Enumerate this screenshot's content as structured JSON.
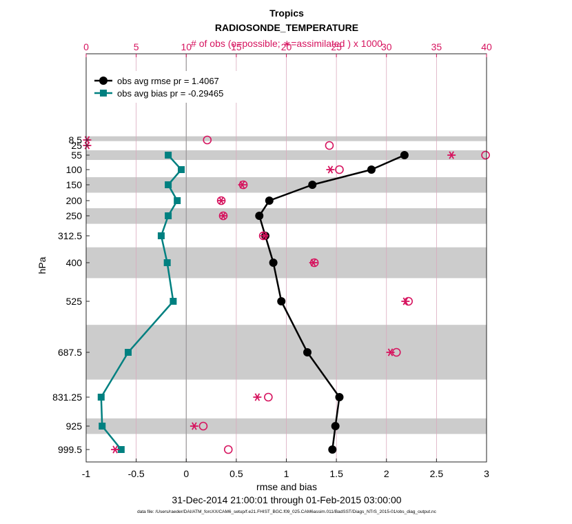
{
  "chart_data": {
    "type": "line",
    "title": "Tropics",
    "subtitle": "RADIOSONDE_TEMPERATURE",
    "top_axis_label": "# of obs (o=possible; ∗=assimilated ) x 1000",
    "xlabel": "rmse and bias",
    "ylabel": "hPa",
    "date_range": "31-Dec-2014 21:00:01 through 01-Feb-2015 03:00:00",
    "footnote": "data file: /Users/raeder/DAI/ATM_forcXX/CAM6_setup/f.e21.FHIST_BGC.f09_025.CAM6assim.011/BadSST/Diags_NTrS_2015-01/obs_diag_output.nc",
    "xlim": [
      -1,
      3
    ],
    "x_ticks": [
      "-1",
      "-0.5",
      "0",
      "0.5",
      "1",
      "1.5",
      "2",
      "2.5",
      "3"
    ],
    "x_tick_values": [
      -1,
      -0.5,
      0,
      0.5,
      1,
      1.5,
      2,
      2.5,
      3
    ],
    "top_xlim": [
      0,
      40
    ],
    "top_ticks": [
      "0",
      "5",
      "10",
      "15",
      "20",
      "25",
      "30",
      "35",
      "40"
    ],
    "top_tick_values": [
      0,
      5,
      10,
      15,
      20,
      25,
      30,
      35,
      40
    ],
    "y_labels": [
      "8.5",
      "25",
      "55",
      "100",
      "150",
      "200",
      "250",
      "312.5",
      "400",
      "525",
      "687.5",
      "831.25",
      "925",
      "999.5"
    ],
    "legend": {
      "rmse": "obs avg rmse pr = 1.4067",
      "bias": "obs avg bias pr = -0.29465"
    },
    "levels": [
      8.5,
      25,
      55,
      100,
      150,
      200,
      250,
      312.5,
      400,
      525,
      687.5,
      831.25,
      925,
      999.5
    ],
    "shaded_bands": [
      [
        5,
        12
      ],
      [
        40,
        70
      ],
      [
        125,
        175
      ],
      [
        225,
        275
      ],
      [
        350,
        450
      ],
      [
        600,
        775
      ],
      [
        900,
        950
      ]
    ],
    "series": [
      {
        "name": "rmse",
        "color": "#000000",
        "levels": [
          55,
          100,
          150,
          200,
          250,
          312.5,
          400,
          525,
          687.5,
          831.25,
          925,
          999.5
        ],
        "values": [
          2.18,
          1.85,
          1.26,
          0.83,
          0.73,
          0.79,
          0.87,
          0.95,
          1.21,
          1.53,
          1.49,
          1.46
        ]
      },
      {
        "name": "bias",
        "color": "#008080",
        "levels": [
          55,
          100,
          150,
          200,
          250,
          312.5,
          400,
          525,
          687.5,
          831.25,
          925,
          999.5
        ],
        "values": [
          -0.18,
          -0.05,
          -0.18,
          -0.09,
          -0.18,
          -0.25,
          -0.19,
          -0.13,
          -0.58,
          -0.85,
          -0.84,
          -0.65
        ]
      }
    ],
    "obs_possible": {
      "color": "#d6135e",
      "levels": [
        8.5,
        25,
        55,
        100,
        150,
        200,
        250,
        312.5,
        400,
        525,
        687.5,
        831.25,
        925,
        999.5
      ],
      "values": [
        12.1,
        24.3,
        39.9,
        25.3,
        15.7,
        13.5,
        13.7,
        17.7,
        22.8,
        32.2,
        31.0,
        18.2,
        11.7,
        14.2
      ]
    },
    "obs_assimilated": {
      "color": "#d6135e",
      "levels": [
        8.5,
        25,
        55,
        100,
        150,
        200,
        250,
        312.5,
        400,
        525,
        687.5,
        831.25,
        925,
        999.5
      ],
      "values": [
        0.1,
        0.1,
        36.5,
        24.4,
        15.6,
        13.5,
        13.7,
        17.8,
        22.7,
        31.9,
        30.4,
        17.1,
        10.8,
        2.9
      ]
    }
  }
}
